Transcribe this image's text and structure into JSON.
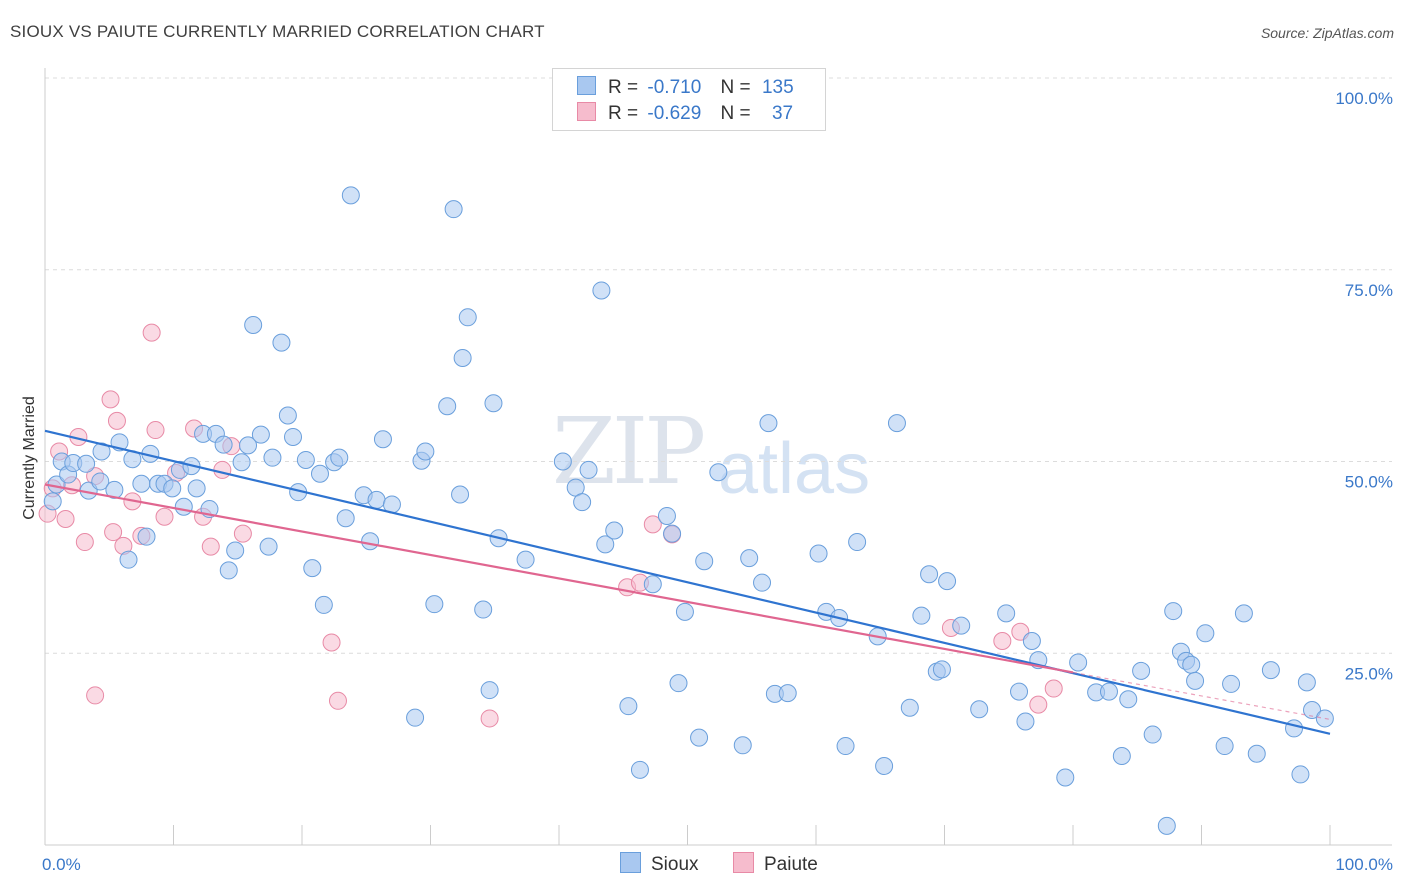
{
  "title": "SIOUX VS PAIUTE CURRENTLY MARRIED CORRELATION CHART",
  "source": "Source: ZipAtlas.com",
  "watermark": {
    "zip": "ZIP",
    "atlas": "atlas"
  },
  "colors": {
    "sioux_fill": "#a9c8f0",
    "sioux_stroke": "#6a9fdc",
    "sioux_line": "#2f74d0",
    "paiute_fill": "#f6bccd",
    "paiute_stroke": "#e88aa6",
    "paiute_line": "#e06690",
    "axis_text": "#3a78c9",
    "grid": "#dcdcdc"
  },
  "legend": {
    "sioux": {
      "r_label": "R =",
      "r_value": "-0.710",
      "n_label": "N =",
      "n_value": "135"
    },
    "paiute": {
      "r_label": "R =",
      "r_value": "-0.629",
      "n_label": "N =",
      "n_value": "37"
    }
  },
  "bottom_legend": {
    "sioux": "Sioux",
    "paiute": "Paiute"
  },
  "chart_data": {
    "type": "scatter",
    "title": "SIOUX VS PAIUTE CURRENTLY MARRIED CORRELATION CHART",
    "xlabel": "",
    "ylabel": "Currently Married",
    "xlim": [
      0,
      100
    ],
    "ylim": [
      0,
      100
    ],
    "x_tick_labels": [
      "0.0%",
      "100.0%"
    ],
    "y_tick_labels": [
      "25.0%",
      "50.0%",
      "75.0%",
      "100.0%"
    ],
    "y_ticks": [
      25,
      50,
      75,
      100
    ],
    "grid": true,
    "legend_position": "top-center",
    "series": [
      {
        "name": "Sioux",
        "R": -0.71,
        "N": 135,
        "trend": {
          "x": [
            0,
            100
          ],
          "y": [
            54.0,
            14.5
          ]
        },
        "points": [
          [
            0.6,
            44.8
          ],
          [
            0.9,
            47.0
          ],
          [
            1.3,
            50.0
          ],
          [
            1.8,
            48.3
          ],
          [
            2.2,
            49.8
          ],
          [
            3.2,
            49.7
          ],
          [
            3.4,
            46.2
          ],
          [
            4.3,
            47.4
          ],
          [
            4.4,
            51.3
          ],
          [
            5.4,
            46.3
          ],
          [
            5.8,
            52.5
          ],
          [
            6.5,
            37.2
          ],
          [
            6.8,
            50.3
          ],
          [
            7.5,
            47.1
          ],
          [
            7.9,
            40.2
          ],
          [
            8.2,
            51.0
          ],
          [
            8.8,
            47.1
          ],
          [
            9.3,
            47.1
          ],
          [
            9.9,
            46.5
          ],
          [
            10.5,
            48.9
          ],
          [
            10.8,
            44.1
          ],
          [
            11.4,
            49.4
          ],
          [
            11.8,
            46.5
          ],
          [
            12.3,
            53.6
          ],
          [
            12.8,
            43.8
          ],
          [
            13.3,
            53.6
          ],
          [
            13.9,
            52.2
          ],
          [
            14.3,
            35.8
          ],
          [
            14.8,
            38.4
          ],
          [
            15.3,
            49.9
          ],
          [
            15.8,
            52.1
          ],
          [
            16.2,
            67.8
          ],
          [
            16.8,
            53.5
          ],
          [
            17.4,
            38.9
          ],
          [
            17.7,
            50.5
          ],
          [
            18.4,
            65.5
          ],
          [
            18.9,
            56.0
          ],
          [
            19.3,
            53.2
          ],
          [
            19.7,
            46.0
          ],
          [
            20.3,
            50.2
          ],
          [
            20.8,
            36.1
          ],
          [
            21.4,
            48.4
          ],
          [
            21.7,
            31.3
          ],
          [
            22.5,
            49.9
          ],
          [
            22.9,
            50.5
          ],
          [
            23.4,
            42.6
          ],
          [
            23.8,
            84.7
          ],
          [
            24.8,
            45.6
          ],
          [
            25.3,
            39.6
          ],
          [
            25.8,
            45.0
          ],
          [
            26.3,
            52.9
          ],
          [
            27.0,
            44.4
          ],
          [
            28.8,
            16.6
          ],
          [
            29.3,
            50.1
          ],
          [
            29.6,
            51.3
          ],
          [
            30.3,
            31.4
          ],
          [
            31.3,
            57.2
          ],
          [
            31.8,
            82.9
          ],
          [
            32.3,
            45.7
          ],
          [
            32.5,
            63.5
          ],
          [
            32.9,
            68.8
          ],
          [
            34.1,
            30.7
          ],
          [
            34.6,
            20.2
          ],
          [
            34.9,
            57.6
          ],
          [
            35.3,
            40.0
          ],
          [
            37.4,
            37.2
          ],
          [
            40.3,
            50.0
          ],
          [
            41.3,
            46.6
          ],
          [
            41.8,
            44.7
          ],
          [
            42.3,
            48.9
          ],
          [
            43.3,
            72.3
          ],
          [
            43.6,
            39.2
          ],
          [
            44.3,
            41.0
          ],
          [
            45.4,
            18.1
          ],
          [
            46.3,
            9.8
          ],
          [
            47.3,
            34.0
          ],
          [
            48.4,
            42.9
          ],
          [
            48.8,
            40.6
          ],
          [
            49.3,
            21.1
          ],
          [
            49.8,
            30.4
          ],
          [
            50.9,
            14.0
          ],
          [
            51.3,
            37.0
          ],
          [
            52.4,
            48.6
          ],
          [
            54.3,
            13.0
          ],
          [
            54.8,
            37.4
          ],
          [
            55.8,
            34.2
          ],
          [
            56.3,
            55.0
          ],
          [
            56.8,
            19.7
          ],
          [
            57.8,
            19.8
          ],
          [
            60.2,
            38.0
          ],
          [
            60.8,
            30.4
          ],
          [
            61.8,
            29.6
          ],
          [
            62.3,
            12.9
          ],
          [
            63.2,
            39.5
          ],
          [
            64.8,
            27.2
          ],
          [
            65.3,
            10.3
          ],
          [
            66.3,
            55.0
          ],
          [
            67.3,
            17.9
          ],
          [
            68.2,
            29.9
          ],
          [
            68.8,
            35.3
          ],
          [
            69.4,
            22.6
          ],
          [
            69.8,
            22.9
          ],
          [
            70.2,
            34.4
          ],
          [
            71.3,
            28.6
          ],
          [
            72.7,
            17.7
          ],
          [
            74.8,
            30.2
          ],
          [
            75.8,
            20.0
          ],
          [
            76.3,
            16.1
          ],
          [
            76.8,
            26.6
          ],
          [
            77.3,
            24.1
          ],
          [
            79.4,
            8.8
          ],
          [
            80.4,
            23.8
          ],
          [
            81.8,
            19.9
          ],
          [
            82.8,
            20.0
          ],
          [
            83.8,
            11.6
          ],
          [
            84.3,
            19.0
          ],
          [
            85.3,
            22.7
          ],
          [
            86.2,
            14.4
          ],
          [
            87.3,
            2.5
          ],
          [
            87.8,
            30.5
          ],
          [
            88.4,
            25.2
          ],
          [
            88.8,
            24.0
          ],
          [
            89.2,
            23.5
          ],
          [
            89.5,
            21.4
          ],
          [
            90.3,
            27.6
          ],
          [
            91.8,
            12.9
          ],
          [
            92.3,
            21.0
          ],
          [
            93.3,
            30.2
          ],
          [
            94.3,
            11.9
          ],
          [
            95.4,
            22.8
          ],
          [
            97.2,
            15.2
          ],
          [
            97.7,
            9.2
          ],
          [
            98.2,
            21.2
          ],
          [
            98.6,
            17.6
          ],
          [
            99.6,
            16.5
          ]
        ]
      },
      {
        "name": "Paiute",
        "R": -0.629,
        "N": 37,
        "trend": {
          "x": [
            0,
            80
          ],
          "y": [
            47.0,
            22.5
          ]
        },
        "points": [
          [
            0.2,
            43.2
          ],
          [
            0.6,
            46.5
          ],
          [
            1.1,
            51.3
          ],
          [
            1.6,
            42.5
          ],
          [
            2.1,
            46.9
          ],
          [
            2.6,
            53.2
          ],
          [
            3.1,
            39.5
          ],
          [
            3.9,
            19.5
          ],
          [
            3.9,
            48.1
          ],
          [
            5.1,
            58.1
          ],
          [
            5.3,
            40.8
          ],
          [
            5.6,
            55.3
          ],
          [
            6.1,
            39.0
          ],
          [
            6.8,
            44.8
          ],
          [
            7.5,
            40.3
          ],
          [
            8.3,
            66.8
          ],
          [
            8.6,
            54.1
          ],
          [
            9.3,
            42.8
          ],
          [
            10.2,
            48.5
          ],
          [
            11.6,
            54.3
          ],
          [
            12.3,
            42.8
          ],
          [
            12.9,
            38.9
          ],
          [
            13.8,
            48.9
          ],
          [
            14.5,
            52.0
          ],
          [
            15.4,
            40.6
          ],
          [
            22.3,
            26.4
          ],
          [
            22.8,
            18.8
          ],
          [
            34.6,
            16.5
          ],
          [
            45.3,
            33.6
          ],
          [
            46.3,
            34.2
          ],
          [
            47.3,
            41.8
          ],
          [
            48.8,
            40.5
          ],
          [
            70.5,
            28.3
          ],
          [
            74.5,
            26.6
          ],
          [
            75.9,
            27.8
          ],
          [
            77.3,
            18.3
          ],
          [
            78.5,
            20.4
          ]
        ]
      }
    ]
  }
}
